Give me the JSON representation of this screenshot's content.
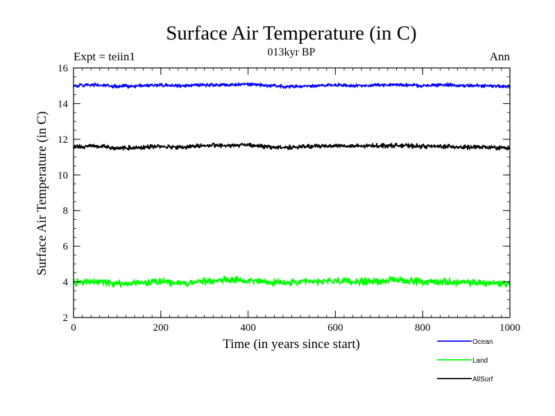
{
  "chart_data": {
    "type": "line",
    "title": "Surface Air Temperature (in C)",
    "subtitle": "013kyr BP",
    "left_label": "Expt = teiin1",
    "right_label": "Ann",
    "xlabel": "Time (in years since start)",
    "ylabel": "Surface Air Temperature (in C)",
    "xlim": [
      0,
      1000
    ],
    "ylim": [
      2,
      16
    ],
    "x_ticks": [
      "0",
      "200",
      "400",
      "600",
      "800",
      "1000"
    ],
    "y_ticks": [
      "2",
      "4",
      "6",
      "8",
      "10",
      "12",
      "14",
      "16"
    ],
    "grid": false,
    "legend_position": "bottom-right outside",
    "series": [
      {
        "name": "Ocean",
        "color": "#0000ff",
        "x": [
          0,
          50,
          100,
          150,
          200,
          250,
          300,
          350,
          400,
          450,
          500,
          550,
          600,
          650,
          700,
          750,
          800,
          850,
          900,
          950,
          1000
        ],
        "values": [
          15.0,
          15.05,
          14.95,
          15.0,
          15.05,
          15.0,
          15.05,
          15.05,
          15.1,
          15.0,
          14.95,
          15.0,
          15.05,
          15.0,
          15.05,
          15.05,
          15.0,
          15.05,
          15.0,
          15.0,
          14.95
        ]
      },
      {
        "name": "Land",
        "color": "#00ff00",
        "x": [
          0,
          50,
          100,
          150,
          200,
          250,
          300,
          350,
          400,
          450,
          500,
          550,
          600,
          650,
          700,
          750,
          800,
          850,
          900,
          950,
          1000
        ],
        "values": [
          3.95,
          4.05,
          3.9,
          3.95,
          4.0,
          3.9,
          4.05,
          4.1,
          4.1,
          3.95,
          3.95,
          4.0,
          4.05,
          4.0,
          4.05,
          4.1,
          4.0,
          4.0,
          3.95,
          3.95,
          3.9
        ]
      },
      {
        "name": "AllSurf",
        "color": "#000000",
        "x": [
          0,
          50,
          100,
          150,
          200,
          250,
          300,
          350,
          400,
          450,
          500,
          550,
          600,
          650,
          700,
          750,
          800,
          850,
          900,
          950,
          1000
        ],
        "values": [
          11.55,
          11.65,
          11.5,
          11.55,
          11.6,
          11.55,
          11.65,
          11.65,
          11.7,
          11.55,
          11.55,
          11.6,
          11.65,
          11.6,
          11.65,
          11.65,
          11.6,
          11.6,
          11.55,
          11.55,
          11.5
        ]
      }
    ]
  }
}
